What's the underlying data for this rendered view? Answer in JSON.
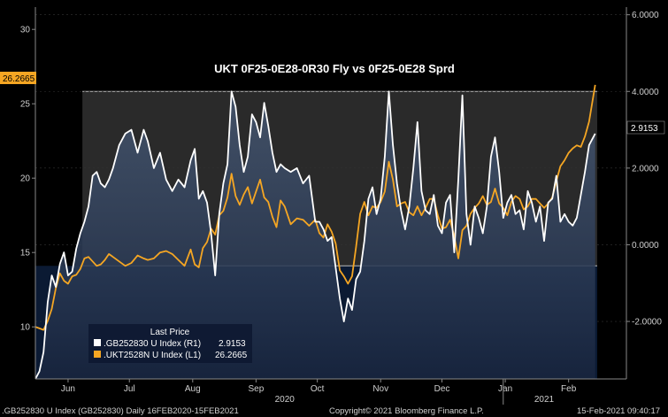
{
  "chart_data": {
    "type": "line",
    "title": "UKT 0F25-0E28-0R30 Fly vs 0F25-0E28 Sprd",
    "left_axis": {
      "range": [
        6.5,
        31.5
      ],
      "ticks": [
        "30",
        "25",
        "20",
        "15",
        "10"
      ],
      "tick_values": [
        30,
        25,
        20,
        15,
        10
      ]
    },
    "right_axis": {
      "range": [
        -3.5,
        6.2
      ],
      "ticks": [
        "6.0000",
        "4.0000",
        "2.0000",
        "0.0000",
        "-2.0000"
      ],
      "tick_values": [
        6,
        4,
        2,
        0,
        -2
      ]
    },
    "x_axis": {
      "start": "2020-05-16",
      "end": "2021-02-15",
      "months": [
        {
          "label": "Jun",
          "date": "2020-06-01"
        },
        {
          "label": "Jul",
          "date": "2020-07-01"
        },
        {
          "label": "Aug",
          "date": "2020-08-01"
        },
        {
          "label": "Sep",
          "date": "2020-09-01"
        },
        {
          "label": "Oct",
          "date": "2020-10-01"
        },
        {
          "label": "Nov",
          "date": "2020-11-01"
        },
        {
          "label": "Dec",
          "date": "2020-12-01"
        },
        {
          "label": "Jan",
          "date": "2021-01-01"
        },
        {
          "label": "Feb",
          "date": "2021-02-01"
        }
      ],
      "years": [
        {
          "label": "2020",
          "date": "2020-09-15"
        },
        {
          "label": "2021",
          "date": "2021-01-20"
        }
      ],
      "year_divider": "2020-12-31"
    },
    "bands": {
      "upper": 4.0,
      "lower": -0.55
    },
    "last_price_labels": {
      "orange": "26.2665",
      "white": "2.9153"
    },
    "series": [
      {
        "name": ".GB252830 U Index (R1)",
        "last": "2.9153",
        "axis": "right",
        "color": "#ffffff",
        "points": [
          [
            "2020-05-16",
            -3.5
          ],
          [
            "2020-05-18",
            -3.3
          ],
          [
            "2020-05-20",
            -2.8
          ],
          [
            "2020-05-22",
            -1.5
          ],
          [
            "2020-05-24",
            -0.8
          ],
          [
            "2020-05-26",
            -1.1
          ],
          [
            "2020-05-28",
            -0.5
          ],
          [
            "2020-05-30",
            -0.2
          ],
          [
            "2020-06-01",
            -0.8
          ],
          [
            "2020-06-03",
            -0.7
          ],
          [
            "2020-06-05",
            -0.1
          ],
          [
            "2020-06-07",
            0.3
          ],
          [
            "2020-06-09",
            0.6
          ],
          [
            "2020-06-11",
            1.0
          ],
          [
            "2020-06-13",
            1.8
          ],
          [
            "2020-06-15",
            1.9
          ],
          [
            "2020-06-17",
            1.6
          ],
          [
            "2020-06-19",
            1.5
          ],
          [
            "2020-06-21",
            1.7
          ],
          [
            "2020-06-23",
            2.0
          ],
          [
            "2020-06-26",
            2.6
          ],
          [
            "2020-06-29",
            2.9
          ],
          [
            "2020-07-02",
            3.0
          ],
          [
            "2020-07-05",
            2.4
          ],
          [
            "2020-07-08",
            3.0
          ],
          [
            "2020-07-10",
            2.7
          ],
          [
            "2020-07-13",
            2.0
          ],
          [
            "2020-07-16",
            2.4
          ],
          [
            "2020-07-19",
            1.7
          ],
          [
            "2020-07-22",
            1.4
          ],
          [
            "2020-07-25",
            1.7
          ],
          [
            "2020-07-28",
            1.5
          ],
          [
            "2020-07-31",
            2.2
          ],
          [
            "2020-08-02",
            2.5
          ],
          [
            "2020-08-04",
            1.2
          ],
          [
            "2020-08-06",
            1.4
          ],
          [
            "2020-08-08",
            1.1
          ],
          [
            "2020-08-10",
            0.3
          ],
          [
            "2020-08-12",
            -0.8
          ],
          [
            "2020-08-14",
            0.8
          ],
          [
            "2020-08-16",
            1.6
          ],
          [
            "2020-08-18",
            2.1
          ],
          [
            "2020-08-20",
            4.0
          ],
          [
            "2020-08-22",
            3.6
          ],
          [
            "2020-08-24",
            2.6
          ],
          [
            "2020-08-26",
            1.9
          ],
          [
            "2020-08-28",
            2.3
          ],
          [
            "2020-08-30",
            3.4
          ],
          [
            "2020-09-01",
            3.2
          ],
          [
            "2020-09-03",
            2.8
          ],
          [
            "2020-09-05",
            3.7
          ],
          [
            "2020-09-07",
            3.1
          ],
          [
            "2020-09-09",
            2.4
          ],
          [
            "2020-09-11",
            1.9
          ],
          [
            "2020-09-13",
            2.1
          ],
          [
            "2020-09-15",
            2.0
          ],
          [
            "2020-09-18",
            1.9
          ],
          [
            "2020-09-21",
            2.0
          ],
          [
            "2020-09-24",
            1.6
          ],
          [
            "2020-09-27",
            1.8
          ],
          [
            "2020-09-30",
            0.6
          ],
          [
            "2020-10-02",
            0.6
          ],
          [
            "2020-10-04",
            0.4
          ],
          [
            "2020-10-06",
            0.1
          ],
          [
            "2020-10-08",
            0.2
          ],
          [
            "2020-10-10",
            -0.6
          ],
          [
            "2020-10-12",
            -1.4
          ],
          [
            "2020-10-14",
            -2.0
          ],
          [
            "2020-10-16",
            -1.4
          ],
          [
            "2020-10-18",
            -1.7
          ],
          [
            "2020-10-20",
            -0.9
          ],
          [
            "2020-10-22",
            -0.7
          ],
          [
            "2020-10-24",
            0.1
          ],
          [
            "2020-10-26",
            1.2
          ],
          [
            "2020-10-28",
            1.5
          ],
          [
            "2020-10-30",
            0.8
          ],
          [
            "2020-11-01",
            1.2
          ],
          [
            "2020-11-03",
            2.3
          ],
          [
            "2020-11-05",
            4.0
          ],
          [
            "2020-11-07",
            2.6
          ],
          [
            "2020-11-09",
            1.6
          ],
          [
            "2020-11-11",
            0.9
          ],
          [
            "2020-11-13",
            0.4
          ],
          [
            "2020-11-15",
            1.0
          ],
          [
            "2020-11-17",
            2.0
          ],
          [
            "2020-11-19",
            3.2
          ],
          [
            "2020-11-21",
            1.4
          ],
          [
            "2020-11-23",
            0.9
          ],
          [
            "2020-11-25",
            0.8
          ],
          [
            "2020-11-27",
            1.3
          ],
          [
            "2020-11-29",
            0.5
          ],
          [
            "2020-12-01",
            0.3
          ],
          [
            "2020-12-03",
            1.1
          ],
          [
            "2020-12-05",
            1.3
          ],
          [
            "2020-12-07",
            -0.2
          ],
          [
            "2020-12-09",
            1.7
          ],
          [
            "2020-12-11",
            3.9
          ],
          [
            "2020-12-13",
            0.8
          ],
          [
            "2020-12-15",
            0.0
          ],
          [
            "2020-12-17",
            1.0
          ],
          [
            "2020-12-19",
            0.7
          ],
          [
            "2020-12-21",
            0.3
          ],
          [
            "2020-12-23",
            1.0
          ],
          [
            "2020-12-25",
            2.3
          ],
          [
            "2020-12-27",
            2.8
          ],
          [
            "2020-12-29",
            1.9
          ],
          [
            "2020-12-31",
            0.7
          ],
          [
            "2021-01-02",
            1.1
          ],
          [
            "2021-01-04",
            1.3
          ],
          [
            "2021-01-06",
            0.8
          ],
          [
            "2021-01-08",
            0.9
          ],
          [
            "2021-01-10",
            0.4
          ],
          [
            "2021-01-12",
            1.4
          ],
          [
            "2021-01-14",
            1.1
          ],
          [
            "2021-01-16",
            0.6
          ],
          [
            "2021-01-18",
            1.0
          ],
          [
            "2021-01-20",
            0.1
          ],
          [
            "2021-01-22",
            1.1
          ],
          [
            "2021-01-24",
            1.2
          ],
          [
            "2021-01-26",
            1.8
          ],
          [
            "2021-01-28",
            0.6
          ],
          [
            "2021-01-30",
            0.8
          ],
          [
            "2021-02-01",
            0.6
          ],
          [
            "2021-02-03",
            0.5
          ],
          [
            "2021-02-05",
            0.7
          ],
          [
            "2021-02-07",
            1.3
          ],
          [
            "2021-02-09",
            1.9
          ],
          [
            "2021-02-11",
            2.6
          ],
          [
            "2021-02-14",
            2.9
          ]
        ]
      },
      {
        "name": ".UKT2528N U Index (L1)",
        "last": "26.2665",
        "axis": "left",
        "color": "#f5a623",
        "points": [
          [
            "2020-05-16",
            10.0
          ],
          [
            "2020-05-18",
            9.9
          ],
          [
            "2020-05-20",
            9.8
          ],
          [
            "2020-05-22",
            10.4
          ],
          [
            "2020-05-24",
            11.2
          ],
          [
            "2020-05-26",
            12.6
          ],
          [
            "2020-05-28",
            13.6
          ],
          [
            "2020-05-30",
            13.1
          ],
          [
            "2020-06-01",
            12.9
          ],
          [
            "2020-06-03",
            13.4
          ],
          [
            "2020-06-05",
            13.5
          ],
          [
            "2020-06-07",
            13.9
          ],
          [
            "2020-06-09",
            14.6
          ],
          [
            "2020-06-11",
            14.7
          ],
          [
            "2020-06-13",
            14.4
          ],
          [
            "2020-06-15",
            14.1
          ],
          [
            "2020-06-17",
            14.2
          ],
          [
            "2020-06-19",
            14.5
          ],
          [
            "2020-06-21",
            14.9
          ],
          [
            "2020-06-23",
            14.7
          ],
          [
            "2020-06-26",
            14.4
          ],
          [
            "2020-06-29",
            14.1
          ],
          [
            "2020-07-02",
            14.3
          ],
          [
            "2020-07-05",
            14.8
          ],
          [
            "2020-07-08",
            14.6
          ],
          [
            "2020-07-10",
            14.5
          ],
          [
            "2020-07-13",
            14.6
          ],
          [
            "2020-07-16",
            15.0
          ],
          [
            "2020-07-19",
            15.1
          ],
          [
            "2020-07-22",
            14.9
          ],
          [
            "2020-07-25",
            14.5
          ],
          [
            "2020-07-28",
            14.1
          ],
          [
            "2020-07-31",
            15.2
          ],
          [
            "2020-08-02",
            14.2
          ],
          [
            "2020-08-04",
            14.0
          ],
          [
            "2020-08-06",
            15.3
          ],
          [
            "2020-08-08",
            15.7
          ],
          [
            "2020-08-10",
            16.6
          ],
          [
            "2020-08-12",
            16.2
          ],
          [
            "2020-08-14",
            17.5
          ],
          [
            "2020-08-16",
            17.8
          ],
          [
            "2020-08-18",
            18.7
          ],
          [
            "2020-08-20",
            20.3
          ],
          [
            "2020-08-22",
            18.8
          ],
          [
            "2020-08-24",
            18.2
          ],
          [
            "2020-08-26",
            18.9
          ],
          [
            "2020-08-28",
            19.4
          ],
          [
            "2020-08-30",
            18.3
          ],
          [
            "2020-09-01",
            19.1
          ],
          [
            "2020-09-03",
            19.9
          ],
          [
            "2020-09-05",
            18.7
          ],
          [
            "2020-09-07",
            18.4
          ],
          [
            "2020-09-09",
            17.4
          ],
          [
            "2020-09-11",
            16.7
          ],
          [
            "2020-09-13",
            18.5
          ],
          [
            "2020-09-15",
            18.1
          ],
          [
            "2020-09-18",
            16.9
          ],
          [
            "2020-09-21",
            17.3
          ],
          [
            "2020-09-24",
            17.2
          ],
          [
            "2020-09-27",
            16.8
          ],
          [
            "2020-09-30",
            17.2
          ],
          [
            "2020-10-02",
            16.3
          ],
          [
            "2020-10-04",
            16.0
          ],
          [
            "2020-10-06",
            16.9
          ],
          [
            "2020-10-08",
            16.4
          ],
          [
            "2020-10-10",
            15.6
          ],
          [
            "2020-10-12",
            13.8
          ],
          [
            "2020-10-14",
            13.4
          ],
          [
            "2020-10-16",
            12.9
          ],
          [
            "2020-10-18",
            13.4
          ],
          [
            "2020-10-20",
            15.4
          ],
          [
            "2020-10-22",
            17.6
          ],
          [
            "2020-10-24",
            18.4
          ],
          [
            "2020-10-26",
            17.5
          ],
          [
            "2020-10-28",
            18.1
          ],
          [
            "2020-10-30",
            18.0
          ],
          [
            "2020-11-01",
            18.4
          ],
          [
            "2020-11-03",
            19.1
          ],
          [
            "2020-11-05",
            21.1
          ],
          [
            "2020-11-07",
            19.9
          ],
          [
            "2020-11-09",
            18.1
          ],
          [
            "2020-11-11",
            18.3
          ],
          [
            "2020-11-13",
            18.4
          ],
          [
            "2020-11-15",
            17.7
          ],
          [
            "2020-11-17",
            17.5
          ],
          [
            "2020-11-19",
            18.1
          ],
          [
            "2020-11-21",
            17.5
          ],
          [
            "2020-11-23",
            18.0
          ],
          [
            "2020-11-25",
            18.6
          ],
          [
            "2020-11-27",
            18.6
          ],
          [
            "2020-11-29",
            17.5
          ],
          [
            "2020-12-01",
            16.6
          ],
          [
            "2020-12-03",
            16.7
          ],
          [
            "2020-12-05",
            17.2
          ],
          [
            "2020-12-07",
            16.1
          ],
          [
            "2020-12-09",
            14.6
          ],
          [
            "2020-12-11",
            16.5
          ],
          [
            "2020-12-13",
            16.8
          ],
          [
            "2020-12-15",
            17.6
          ],
          [
            "2020-12-17",
            18.0
          ],
          [
            "2020-12-19",
            18.3
          ],
          [
            "2020-12-21",
            18.8
          ],
          [
            "2020-12-23",
            18.2
          ],
          [
            "2020-12-25",
            18.4
          ],
          [
            "2020-12-27",
            19.3
          ],
          [
            "2020-12-29",
            18.3
          ],
          [
            "2020-12-31",
            18.0
          ],
          [
            "2021-01-02",
            17.5
          ],
          [
            "2021-01-04",
            18.4
          ],
          [
            "2021-01-06",
            18.8
          ],
          [
            "2021-01-08",
            18.6
          ],
          [
            "2021-01-10",
            17.9
          ],
          [
            "2021-01-12",
            18.1
          ],
          [
            "2021-01-14",
            18.6
          ],
          [
            "2021-01-16",
            18.6
          ],
          [
            "2021-01-18",
            18.3
          ],
          [
            "2021-01-20",
            18.0
          ],
          [
            "2021-01-22",
            18.3
          ],
          [
            "2021-01-24",
            18.7
          ],
          [
            "2021-01-26",
            19.8
          ],
          [
            "2021-01-28",
            20.8
          ],
          [
            "2021-01-30",
            21.2
          ],
          [
            "2021-02-01",
            21.7
          ],
          [
            "2021-02-03",
            22.0
          ],
          [
            "2021-02-05",
            22.2
          ],
          [
            "2021-02-07",
            22.1
          ],
          [
            "2021-02-09",
            22.8
          ],
          [
            "2021-02-11",
            23.8
          ],
          [
            "2021-02-14",
            26.2665
          ]
        ]
      }
    ],
    "legend": {
      "title": "Last Price",
      "placement": "bottom-left"
    }
  },
  "footer": {
    "left": ".GB252830 U Index (GB252830)  Daily 16FEB2020-15FEB2021",
    "center": "Copyright© 2021 Bloomberg Finance L.P.",
    "right": "15-Feb-2021 09:40:17"
  }
}
